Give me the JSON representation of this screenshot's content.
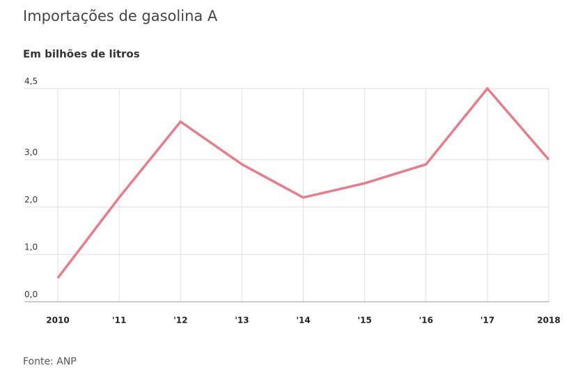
{
  "chart_data": {
    "type": "line",
    "title": "Importações de gasolina A",
    "subtitle": "Em bilhões de litros",
    "source": "Fonte: ANP",
    "categories": [
      "2010",
      "'11",
      "'12",
      "'13",
      "'14",
      "'15",
      "'16",
      "'17",
      "2018"
    ],
    "values": [
      0.5,
      2.2,
      3.8,
      2.9,
      2.2,
      2.5,
      2.9,
      4.5,
      3.0
    ],
    "color": "#e97b8b",
    "ylim": [
      0,
      4.5
    ],
    "yticks": [
      {
        "value": 0,
        "label": "0,0"
      },
      {
        "value": 1,
        "label": "1,0"
      },
      {
        "value": 2,
        "label": "2,0"
      },
      {
        "value": 3,
        "label": "3,0"
      },
      {
        "value": 4.5,
        "label": "4,5"
      }
    ],
    "grid": true
  }
}
